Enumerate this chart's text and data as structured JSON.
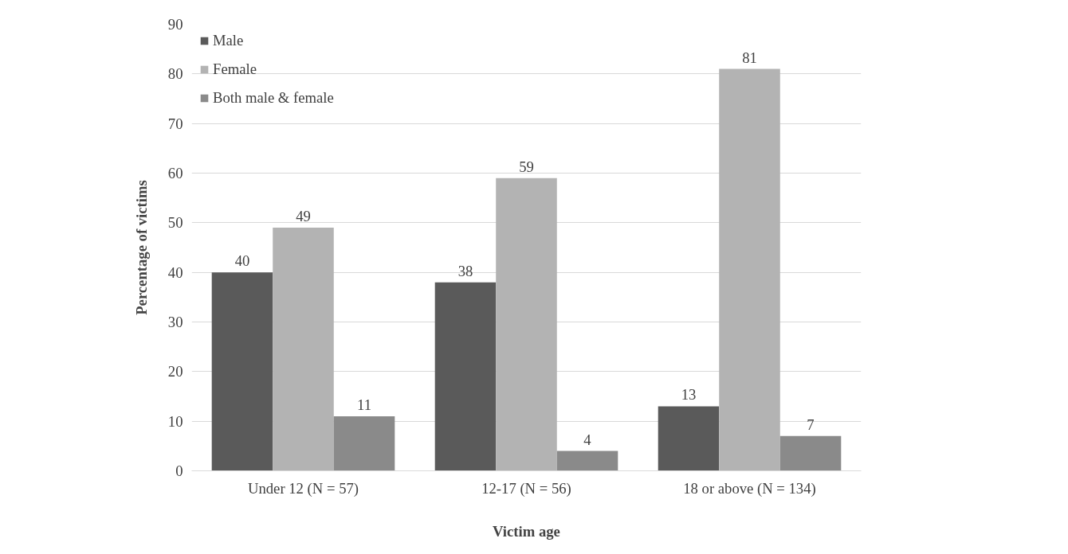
{
  "chart_data": {
    "type": "bar",
    "xlabel": "Victim age",
    "ylabel": "Percentage of victims",
    "categories": [
      "Under 12 (N = 57)",
      "12-17 (N = 56)",
      "18 or above (N = 134)"
    ],
    "series": [
      {
        "name": "Male",
        "color": "#5a5a5a",
        "values": [
          40,
          38,
          13
        ]
      },
      {
        "name": "Female",
        "color": "#b3b3b3",
        "values": [
          49,
          59,
          81
        ]
      },
      {
        "name": "Both male & female",
        "color": "#8a8a8a",
        "values": [
          11,
          4,
          7
        ]
      }
    ],
    "ylim": [
      0,
      90
    ],
    "yticks": [
      0,
      10,
      20,
      30,
      40,
      50,
      60,
      70,
      80,
      90
    ],
    "grid": "y",
    "legend": "top left",
    "data_labels": true
  }
}
